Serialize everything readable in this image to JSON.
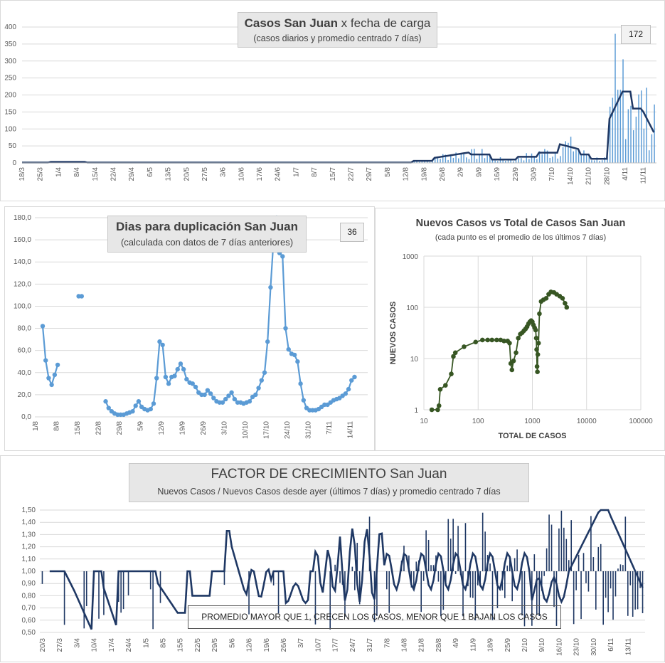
{
  "chart_data": [
    {
      "type": "bar+line",
      "id": "casos",
      "title_bold": "Casos San Juan",
      "title_rest": " x fecha  de  carga",
      "subtitle": "(casos diarios y promedio  centrado 7 días)",
      "badge": "172",
      "ylim": [
        0,
        400
      ],
      "yticks": [
        "0",
        "50",
        "100",
        "150",
        "200",
        "250",
        "300",
        "350",
        "400"
      ],
      "xticks": [
        "18/3",
        "25/3",
        "1/4",
        "8/4",
        "15/4",
        "22/4",
        "29/4",
        "6/5",
        "13/5",
        "20/5",
        "27/5",
        "3/6",
        "10/6",
        "17/6",
        "24/6",
        "1/7",
        "8/7",
        "15/7",
        "22/7",
        "29/7",
        "5/8",
        "12/8",
        "19/8",
        "26/8",
        "2/9",
        "9/9",
        "16/9",
        "23/9",
        "30/9",
        "7/10",
        "14/10",
        "21/10",
        "28/10",
        "4/11",
        "11/11"
      ],
      "series": [
        {
          "name": "casos diarios",
          "kind": "bar",
          "color": "#5b9bd5"
        },
        {
          "name": "promedio centrado 7 días",
          "kind": "line",
          "color": "#1f3864"
        }
      ]
    },
    {
      "type": "line",
      "id": "duplicacion",
      "title": "Dias para duplicación San Juan",
      "subtitle": "(calculada con datos de 7 días anteriores)",
      "badge": "36",
      "ylim": [
        0,
        180
      ],
      "yticks": [
        "0,0",
        "20,0",
        "40,0",
        "60,0",
        "80,0",
        "100,0",
        "120,0",
        "140,0",
        "160,0",
        "180,0"
      ],
      "xticks": [
        "1/8",
        "8/8",
        "15/8",
        "22/8",
        "29/8",
        "5/9",
        "12/9",
        "19/9",
        "26/9",
        "3/10",
        "10/10",
        "17/10",
        "24/10",
        "31/10",
        "7/11",
        "14/11"
      ],
      "series": [
        {
          "name": "dias duplicacion",
          "color": "#5b9bd5",
          "segments": [
            [
              [
                0,
                82
              ],
              [
                1,
                51
              ],
              [
                2,
                35
              ],
              [
                3,
                29
              ],
              [
                4,
                38
              ],
              [
                5,
                47
              ]
            ],
            [
              [
                12,
                109
              ],
              [
                13,
                109
              ]
            ],
            [
              [
                21,
                14
              ],
              [
                22,
                8
              ],
              [
                23,
                5
              ],
              [
                24,
                3
              ],
              [
                25,
                2
              ],
              [
                26,
                2
              ],
              [
                27,
                2
              ],
              [
                28,
                3
              ],
              [
                29,
                4
              ],
              [
                30,
                5
              ],
              [
                31,
                10
              ],
              [
                32,
                14
              ],
              [
                33,
                9
              ],
              [
                34,
                7
              ],
              [
                35,
                6
              ],
              [
                36,
                7
              ],
              [
                37,
                12
              ],
              [
                38,
                35
              ],
              [
                39,
                68
              ],
              [
                40,
                65
              ],
              [
                41,
                36
              ],
              [
                42,
                30
              ],
              [
                43,
                36
              ],
              [
                44,
                37
              ],
              [
                45,
                43
              ],
              [
                46,
                48
              ],
              [
                47,
                43
              ],
              [
                48,
                34
              ],
              [
                49,
                31
              ],
              [
                50,
                30
              ],
              [
                51,
                27
              ],
              [
                52,
                22
              ],
              [
                53,
                20
              ],
              [
                54,
                20
              ],
              [
                55,
                24
              ],
              [
                56,
                21
              ],
              [
                57,
                17
              ],
              [
                58,
                14
              ],
              [
                59,
                13
              ],
              [
                60,
                13
              ],
              [
                61,
                16
              ],
              [
                62,
                19
              ],
              [
                63,
                22
              ],
              [
                64,
                16
              ],
              [
                65,
                13
              ],
              [
                66,
                13
              ],
              [
                67,
                12
              ],
              [
                68,
                13
              ],
              [
                69,
                14
              ],
              [
                70,
                18
              ],
              [
                71,
                20
              ],
              [
                72,
                26
              ],
              [
                73,
                33
              ],
              [
                74,
                40
              ],
              [
                75,
                68
              ],
              [
                76,
                117
              ],
              [
                77,
                160
              ],
              [
                78,
                180
              ],
              [
                79,
                148
              ],
              [
                80,
                145
              ],
              [
                81,
                80
              ],
              [
                82,
                61
              ],
              [
                83,
                57
              ],
              [
                84,
                56
              ],
              [
                85,
                50
              ],
              [
                86,
                30
              ],
              [
                87,
                15
              ],
              [
                88,
                8
              ],
              [
                89,
                6
              ],
              [
                90,
                6
              ],
              [
                91,
                6
              ],
              [
                92,
                7
              ],
              [
                93,
                9
              ],
              [
                94,
                11
              ],
              [
                95,
                11
              ],
              [
                96,
                13
              ],
              [
                97,
                15
              ],
              [
                98,
                16
              ],
              [
                99,
                17
              ],
              [
                100,
                19
              ],
              [
                101,
                21
              ],
              [
                102,
                25
              ],
              [
                103,
                33
              ],
              [
                104,
                36
              ]
            ]
          ]
        }
      ]
    },
    {
      "type": "scatter-line",
      "id": "nuevos_vs_total",
      "title": "Nuevos Casos vs Total de Casos San Juan",
      "subtitle": "(cada punto es el promedio de los últimos 7 días)",
      "xlabel": "TOTAL DE CASOS",
      "ylabel": "NUEVOS CASOS",
      "xscale": "log",
      "yscale": "log",
      "xlim": [
        10,
        100000
      ],
      "ylim": [
        1,
        1000
      ],
      "xticks": [
        "10",
        "100",
        "1000",
        "10000",
        "100000"
      ],
      "yticks": [
        "1",
        "10",
        "100",
        "1000"
      ],
      "points": [
        [
          14,
          1
        ],
        [
          18,
          1
        ],
        [
          19,
          1.2
        ],
        [
          20,
          2.5
        ],
        [
          25,
          3
        ],
        [
          32,
          5
        ],
        [
          35,
          11
        ],
        [
          38,
          13
        ],
        [
          55,
          17
        ],
        [
          90,
          21
        ],
        [
          120,
          23
        ],
        [
          150,
          23
        ],
        [
          180,
          23
        ],
        [
          220,
          23
        ],
        [
          260,
          23
        ],
        [
          300,
          22
        ],
        [
          350,
          22
        ],
        [
          380,
          20
        ],
        [
          400,
          8
        ],
        [
          420,
          6
        ],
        [
          450,
          9
        ],
        [
          500,
          13
        ],
        [
          550,
          25
        ],
        [
          600,
          30
        ],
        [
          650,
          32
        ],
        [
          700,
          35
        ],
        [
          750,
          38
        ],
        [
          800,
          42
        ],
        [
          850,
          48
        ],
        [
          900,
          52
        ],
        [
          950,
          55
        ],
        [
          1000,
          52
        ],
        [
          1050,
          45
        ],
        [
          1100,
          40
        ],
        [
          1150,
          36
        ],
        [
          1180,
          25
        ],
        [
          1200,
          15
        ],
        [
          1220,
          7
        ],
        [
          1240,
          5.5
        ],
        [
          1260,
          12
        ],
        [
          1300,
          20
        ],
        [
          1350,
          75
        ],
        [
          1450,
          130
        ],
        [
          1600,
          140
        ],
        [
          1800,
          150
        ],
        [
          2000,
          180
        ],
        [
          2200,
          200
        ],
        [
          2500,
          195
        ],
        [
          2800,
          180
        ],
        [
          3200,
          165
        ],
        [
          3600,
          150
        ],
        [
          4000,
          120
        ],
        [
          4300,
          100
        ]
      ],
      "color": "#375623"
    },
    {
      "type": "bar+line",
      "id": "factor",
      "title_main": "FACTOR DE CRECIMIENTO",
      "title_rest": " San Juan",
      "subtitle": "Nuevos Casos  / Nuevos Casos desde ayer (últimos 7 días) y promedio  centrado 7 días",
      "annotation": "PROMEDIO MAYOR QUE 1, CRECEN LOS CASOS, MENOR QUE 1  BAJAN LOS CASOS",
      "ylim": [
        0.5,
        1.5
      ],
      "yticks": [
        "0,50",
        "0,60",
        "0,70",
        "0,80",
        "0,90",
        "1,00",
        "1,10",
        "1,20",
        "1,30",
        "1,40",
        "1,50"
      ],
      "xticks": [
        "20/3",
        "27/3",
        "3/4",
        "10/4",
        "17/4",
        "24/4",
        "1/5",
        "8/5",
        "15/5",
        "22/5",
        "29/5",
        "5/6",
        "12/6",
        "19/6",
        "26/6",
        "3/7",
        "10/7",
        "17/7",
        "24/7",
        "31/7",
        "7/8",
        "14/8",
        "21/8",
        "28/8",
        "4/9",
        "11/9",
        "18/9",
        "25/9",
        "2/10",
        "9/10",
        "16/10",
        "23/10",
        "30/10",
        "6/11",
        "13/11"
      ],
      "series": [
        {
          "name": "factor diario",
          "kind": "bar",
          "color": "#1f3864"
        },
        {
          "name": "promedio centrado 7 días",
          "kind": "line",
          "color": "#1f3864"
        }
      ]
    }
  ]
}
